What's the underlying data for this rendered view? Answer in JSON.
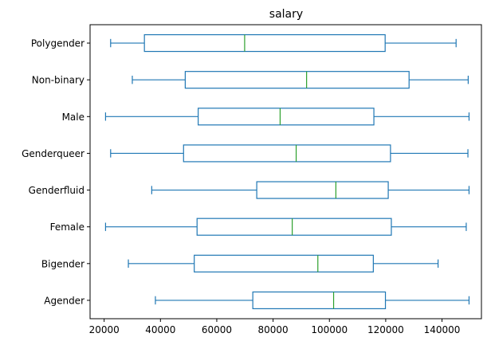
{
  "chart_data": {
    "type": "box",
    "orientation": "horizontal",
    "title": "salary",
    "xlabel": "",
    "ylabel": "",
    "xlim": [
      15000,
      154000
    ],
    "x_ticks": [
      20000,
      40000,
      60000,
      80000,
      100000,
      120000,
      140000
    ],
    "x_tick_labels": [
      "20000",
      "40000",
      "60000",
      "80000",
      "100000",
      "120000",
      "140000"
    ],
    "grid": false,
    "colors": {
      "box": "#1f77b4",
      "median": "#2ca02c"
    },
    "categories": [
      "Polygender",
      "Non-binary",
      "Male",
      "Genderqueer",
      "Genderfluid",
      "Female",
      "Bigender",
      "Agender"
    ],
    "boxes": [
      {
        "name": "Polygender",
        "whislo": 22300,
        "q1": 34300,
        "med": 69900,
        "q3": 119800,
        "whishi": 145000
      },
      {
        "name": "Non-binary",
        "whislo": 30000,
        "q1": 48800,
        "med": 91900,
        "q3": 128300,
        "whishi": 149300
      },
      {
        "name": "Male",
        "whislo": 20500,
        "q1": 53400,
        "med": 82500,
        "q3": 115800,
        "whishi": 149600
      },
      {
        "name": "Genderqueer",
        "whislo": 22300,
        "q1": 48200,
        "med": 88200,
        "q3": 121700,
        "whishi": 149200
      },
      {
        "name": "Genderfluid",
        "whislo": 36900,
        "q1": 74200,
        "med": 102300,
        "q3": 120900,
        "whishi": 149600
      },
      {
        "name": "Female",
        "whislo": 20500,
        "q1": 53000,
        "med": 86800,
        "q3": 122000,
        "whishi": 148600
      },
      {
        "name": "Bigender",
        "whislo": 28600,
        "q1": 52000,
        "med": 95900,
        "q3": 115600,
        "whishi": 138600
      },
      {
        "name": "Agender",
        "whislo": 38200,
        "q1": 72800,
        "med": 101500,
        "q3": 119900,
        "whishi": 149600
      }
    ]
  }
}
